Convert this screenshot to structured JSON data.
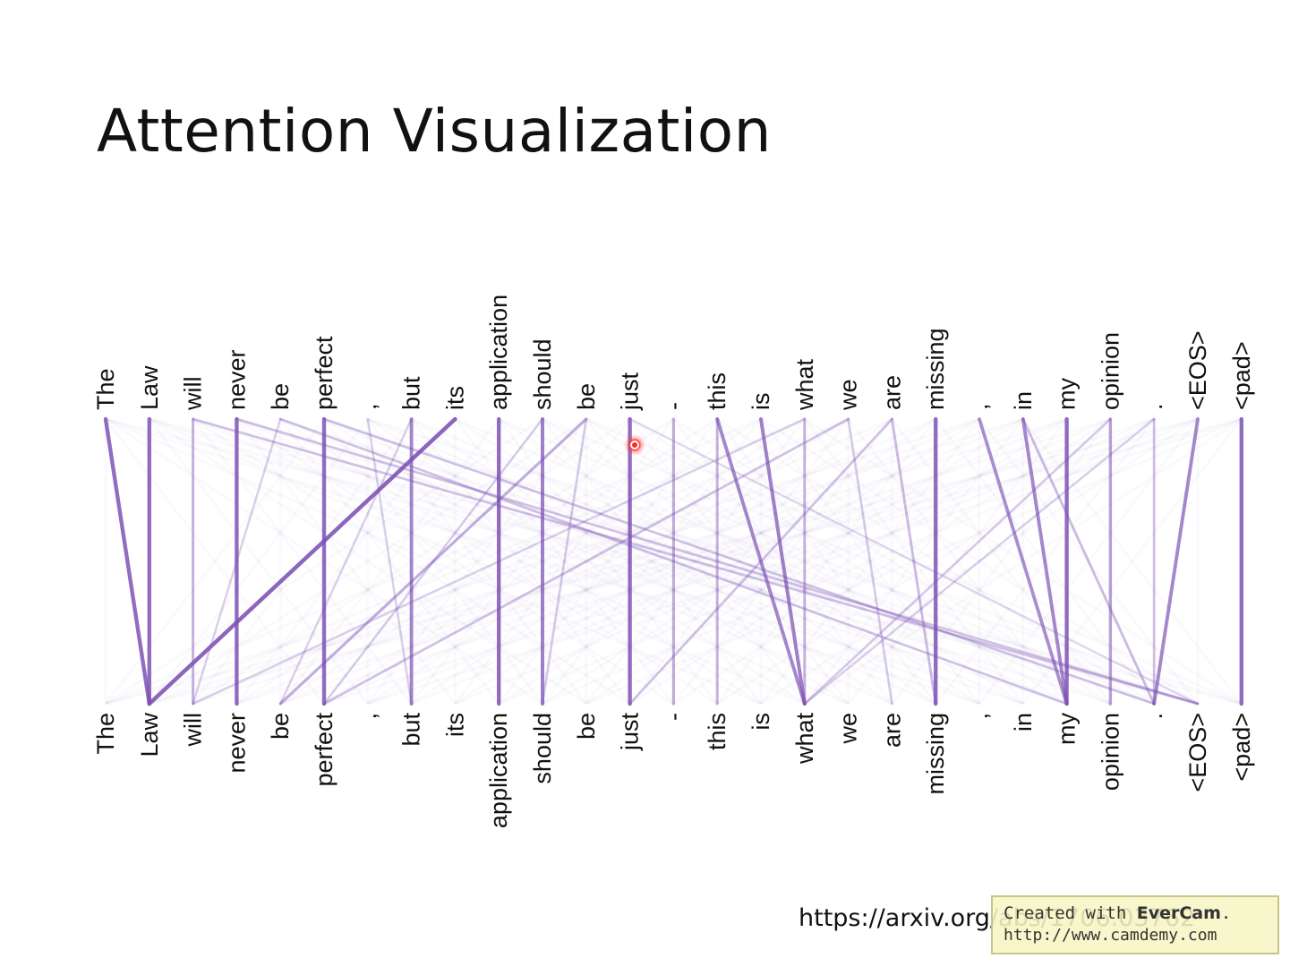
{
  "title": "Attention Visualization",
  "tokens": [
    "The",
    "Law",
    "will",
    "never",
    "be",
    "perfect",
    ",",
    "but",
    "its",
    "application",
    "should",
    "be",
    "just",
    "-",
    "this",
    "is",
    "what",
    "we",
    "are",
    "missing",
    ",",
    "in",
    "my",
    "opinion",
    ".",
    "<EOS>",
    "<pad>"
  ],
  "attention_links": [
    {
      "from": 0,
      "to": 1,
      "weight": 0.95
    },
    {
      "from": 1,
      "to": 1,
      "weight": 0.95
    },
    {
      "from": 2,
      "to": 2,
      "weight": 0.4
    },
    {
      "from": 2,
      "to": 25,
      "weight": 0.3
    },
    {
      "from": 3,
      "to": 3,
      "weight": 0.95
    },
    {
      "from": 3,
      "to": 25,
      "weight": 0.3
    },
    {
      "from": 4,
      "to": 22,
      "weight": 0.3
    },
    {
      "from": 4,
      "to": 2,
      "weight": 0.2
    },
    {
      "from": 5,
      "to": 5,
      "weight": 0.95
    },
    {
      "from": 5,
      "to": 24,
      "weight": 0.3
    },
    {
      "from": 6,
      "to": 7,
      "weight": 0.2
    },
    {
      "from": 7,
      "to": 7,
      "weight": 0.75
    },
    {
      "from": 7,
      "to": 4,
      "weight": 0.2
    },
    {
      "from": 8,
      "to": 1,
      "weight": 1.0
    },
    {
      "from": 9,
      "to": 9,
      "weight": 0.95
    },
    {
      "from": 10,
      "to": 10,
      "weight": 0.8
    },
    {
      "from": 10,
      "to": 5,
      "weight": 0.2
    },
    {
      "from": 11,
      "to": 4,
      "weight": 0.45
    },
    {
      "from": 11,
      "to": 10,
      "weight": 0.25
    },
    {
      "from": 12,
      "to": 12,
      "weight": 0.95
    },
    {
      "from": 12,
      "to": 25,
      "weight": 0.15
    },
    {
      "from": 13,
      "to": 13,
      "weight": 0.45
    },
    {
      "from": 14,
      "to": 16,
      "weight": 0.75
    },
    {
      "from": 14,
      "to": 14,
      "weight": 0.4
    },
    {
      "from": 15,
      "to": 16,
      "weight": 0.8
    },
    {
      "from": 16,
      "to": 16,
      "weight": 0.4
    },
    {
      "from": 16,
      "to": 2,
      "weight": 0.2
    },
    {
      "from": 17,
      "to": 5,
      "weight": 0.3
    },
    {
      "from": 17,
      "to": 18,
      "weight": 0.25
    },
    {
      "from": 18,
      "to": 12,
      "weight": 0.3
    },
    {
      "from": 18,
      "to": 19,
      "weight": 0.35
    },
    {
      "from": 19,
      "to": 19,
      "weight": 0.95
    },
    {
      "from": 20,
      "to": 22,
      "weight": 0.7
    },
    {
      "from": 21,
      "to": 22,
      "weight": 0.75
    },
    {
      "from": 21,
      "to": 24,
      "weight": 0.35
    },
    {
      "from": 22,
      "to": 22,
      "weight": 0.95
    },
    {
      "from": 23,
      "to": 23,
      "weight": 0.55
    },
    {
      "from": 23,
      "to": 16,
      "weight": 0.25
    },
    {
      "from": 24,
      "to": 24,
      "weight": 0.3
    },
    {
      "from": 24,
      "to": 16,
      "weight": 0.2
    },
    {
      "from": 25,
      "to": 24,
      "weight": 0.75
    },
    {
      "from": 26,
      "to": 26,
      "weight": 0.95
    }
  ],
  "link_color": "#7b4fb3",
  "source_text": "https://arxiv.org/abs/1706.03762",
  "watermark": {
    "line1_prefix": "Created with ",
    "brand": "EverCam",
    "line1_suffix": ".",
    "line2": "http://www.camdemy.com"
  }
}
